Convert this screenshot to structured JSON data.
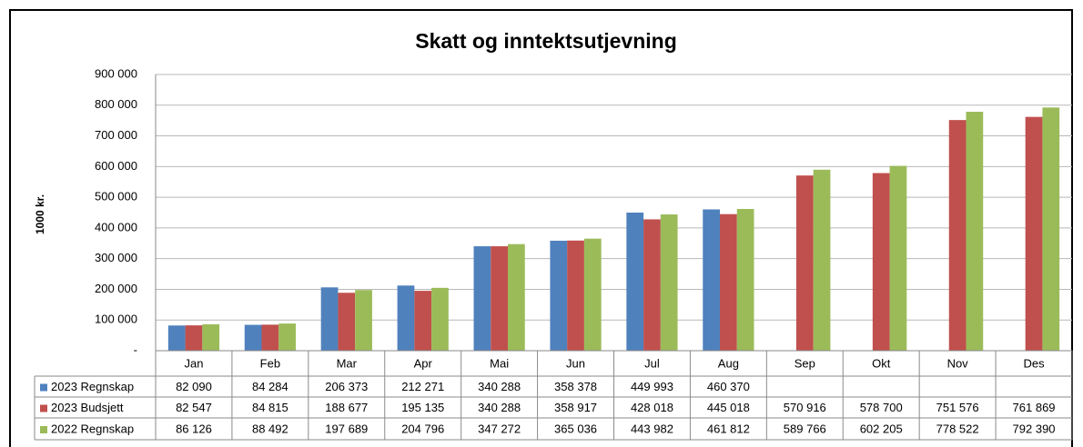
{
  "chart_data": {
    "type": "bar",
    "title": "Skatt og inntektsutjevning",
    "y_label": "1000 kr.",
    "categories": [
      "Jan",
      "Feb",
      "Mar",
      "Apr",
      "Mai",
      "Jun",
      "Jul",
      "Aug",
      "Sep",
      "Okt",
      "Nov",
      "Des"
    ],
    "series": [
      {
        "name": "2023 Regnskap",
        "color": "#4f81bd",
        "values": [
          82090,
          84284,
          206373,
          212271,
          340288,
          358378,
          449993,
          460370,
          null,
          null,
          null,
          null
        ],
        "value_labels": [
          "82 090",
          "84 284",
          "206 373",
          "212 271",
          "340 288",
          "358 378",
          "449 993",
          "460 370",
          null,
          null,
          null,
          null
        ]
      },
      {
        "name": "2023 Budsjett",
        "color": "#c0504d",
        "values": [
          82547,
          84815,
          188677,
          195135,
          340288,
          358917,
          428018,
          445018,
          570916,
          578700,
          751576,
          761869
        ],
        "value_labels": [
          "82 547",
          "84 815",
          "188 677",
          "195 135",
          "340 288",
          "358 917",
          "428 018",
          "445 018",
          "570 916",
          "578 700",
          "751 576",
          "761 869"
        ]
      },
      {
        "name": "2022 Regnskap",
        "color": "#9bbb59",
        "values": [
          86126,
          88492,
          197689,
          204796,
          347272,
          365036,
          443982,
          461812,
          589766,
          602205,
          778522,
          792390
        ],
        "value_labels": [
          "86 126",
          "88 492",
          "197 689",
          "204 796",
          "347 272",
          "365 036",
          "443 982",
          "461 812",
          "589 766",
          "602 205",
          "778 522",
          "792 390"
        ]
      }
    ],
    "ylim": [
      0,
      900000
    ],
    "yticks": [
      {
        "value": 0,
        "label": "-"
      },
      {
        "value": 100000,
        "label": "100 000"
      },
      {
        "value": 200000,
        "label": "200 000"
      },
      {
        "value": 300000,
        "label": "300 000"
      },
      {
        "value": 400000,
        "label": "400 000"
      },
      {
        "value": 500000,
        "label": "500 000"
      },
      {
        "value": 600000,
        "label": "600 000"
      },
      {
        "value": 700000,
        "label": "700 000"
      },
      {
        "value": 800000,
        "label": "800 000"
      },
      {
        "value": 900000,
        "label": "900 000"
      }
    ],
    "grid": true,
    "data_table": true
  }
}
